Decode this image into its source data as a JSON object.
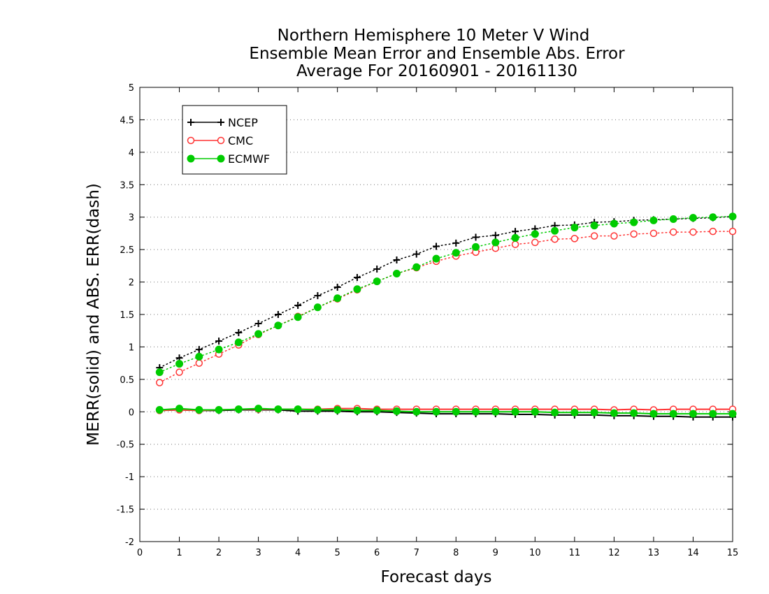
{
  "chart_data": {
    "type": "line",
    "title_lines": [
      "Northern Hemisphere 10 Meter V Wind",
      "Ensemble Mean Error and Ensemble Abs. Error",
      "Average For 20160901 - 20161130"
    ],
    "xlabel": "Forecast days",
    "ylabel": "MERR(solid) and ABS. ERR(dash)",
    "xlim": [
      0,
      15
    ],
    "ylim": [
      -2,
      5
    ],
    "x_ticks": [
      "0",
      "1",
      "2",
      "3",
      "4",
      "5",
      "6",
      "7",
      "8",
      "9",
      "10",
      "11",
      "12",
      "13",
      "14",
      "15"
    ],
    "y_ticks": [
      "5",
      "4.5",
      "4",
      "3.5",
      "3",
      "2.5",
      "2",
      "1.5",
      "1",
      "0.5",
      "0",
      "-0.5",
      "-1",
      "-1.5",
      "-2"
    ],
    "grid": "horizontal dotted",
    "legend_position": "top-left",
    "x": [
      0.5,
      1,
      1.5,
      2,
      2.5,
      3,
      3.5,
      4,
      4.5,
      5,
      5.5,
      6,
      6.5,
      7,
      7.5,
      8,
      8.5,
      9,
      9.5,
      10,
      10.5,
      11,
      11.5,
      12,
      12.5,
      13,
      13.5,
      14,
      14.5,
      15
    ],
    "series": [
      {
        "name": "NCEP",
        "color": "#000000",
        "marker": "plus",
        "abs_err": [
          0.68,
          0.83,
          0.96,
          1.09,
          1.22,
          1.36,
          1.5,
          1.64,
          1.79,
          1.92,
          2.07,
          2.2,
          2.34,
          2.43,
          2.55,
          2.6,
          2.69,
          2.72,
          2.78,
          2.82,
          2.87,
          2.88,
          2.92,
          2.93,
          2.95,
          2.96,
          2.97,
          2.98,
          2.99,
          3.01
        ],
        "mean_err": [
          0.02,
          0.03,
          0.02,
          0.02,
          0.03,
          0.03,
          0.03,
          0.01,
          0.01,
          0.01,
          0.0,
          0.0,
          -0.01,
          -0.02,
          -0.03,
          -0.03,
          -0.03,
          -0.03,
          -0.04,
          -0.04,
          -0.05,
          -0.05,
          -0.05,
          -0.06,
          -0.06,
          -0.07,
          -0.07,
          -0.08,
          -0.08,
          -0.08
        ]
      },
      {
        "name": "CMC",
        "color": "#ff3333",
        "marker": "open-circle",
        "abs_err": [
          0.45,
          0.61,
          0.75,
          0.89,
          1.03,
          1.19,
          1.33,
          1.47,
          1.61,
          1.74,
          1.88,
          2.01,
          2.13,
          2.22,
          2.32,
          2.4,
          2.46,
          2.52,
          2.58,
          2.61,
          2.66,
          2.67,
          2.71,
          2.71,
          2.74,
          2.75,
          2.77,
          2.77,
          2.78,
          2.78
        ],
        "mean_err": [
          0.02,
          0.03,
          0.02,
          0.03,
          0.04,
          0.04,
          0.04,
          0.04,
          0.04,
          0.05,
          0.05,
          0.04,
          0.04,
          0.04,
          0.04,
          0.04,
          0.04,
          0.04,
          0.04,
          0.04,
          0.04,
          0.04,
          0.04,
          0.03,
          0.04,
          0.03,
          0.04,
          0.04,
          0.04,
          0.04
        ]
      },
      {
        "name": "ECMWF",
        "color": "#00cc00",
        "marker": "filled-circle",
        "abs_err": [
          0.61,
          0.74,
          0.85,
          0.96,
          1.07,
          1.2,
          1.33,
          1.46,
          1.61,
          1.75,
          1.89,
          2.01,
          2.13,
          2.23,
          2.36,
          2.45,
          2.54,
          2.61,
          2.68,
          2.74,
          2.79,
          2.84,
          2.87,
          2.9,
          2.92,
          2.95,
          2.97,
          2.99,
          3.0,
          3.01
        ],
        "mean_err": [
          0.03,
          0.05,
          0.03,
          0.03,
          0.04,
          0.05,
          0.04,
          0.04,
          0.03,
          0.03,
          0.02,
          0.02,
          0.01,
          0.0,
          0.0,
          0.0,
          0.0,
          0.0,
          0.0,
          0.0,
          -0.01,
          -0.01,
          -0.01,
          -0.02,
          -0.02,
          -0.03,
          -0.03,
          -0.03,
          -0.03,
          -0.03
        ]
      }
    ]
  }
}
